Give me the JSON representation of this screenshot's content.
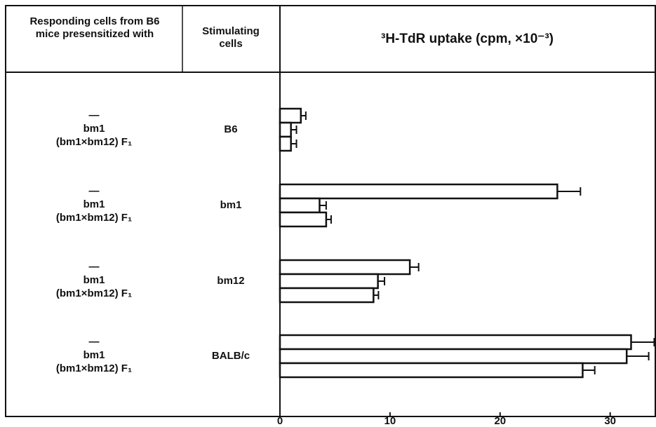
{
  "chart_data": {
    "type": "bar",
    "orientation": "horizontal",
    "table_headers": [
      "Responding cells from B6 mice presensitized with",
      "Stimulating cells"
    ],
    "xlabel": "³H-TdR uptake (cpm, ×10⁻³)",
    "categories": [
      "B6",
      "bm1",
      "bm12",
      "BALB/c"
    ],
    "series": [
      {
        "name": "—",
        "color": "#ffffff",
        "values": [
          1.9,
          25.2,
          11.8,
          31.9
        ],
        "errors": [
          0.45,
          2.1,
          0.8,
          2.1
        ]
      },
      {
        "name": "bm1",
        "color": "#ffffff",
        "values": [
          1.0,
          3.6,
          8.9,
          31.5
        ],
        "errors": [
          0.5,
          0.6,
          0.6,
          2.0
        ]
      },
      {
        "name": "(bm1×bm12) F₁",
        "color": "#ffffff",
        "values": [
          1.0,
          4.2,
          8.5,
          27.5
        ],
        "errors": [
          0.5,
          0.45,
          0.45,
          1.1
        ]
      }
    ],
    "xlim": [
      0,
      34.1
    ],
    "xticks": [
      0,
      10,
      20,
      30
    ],
    "grid": false
  }
}
